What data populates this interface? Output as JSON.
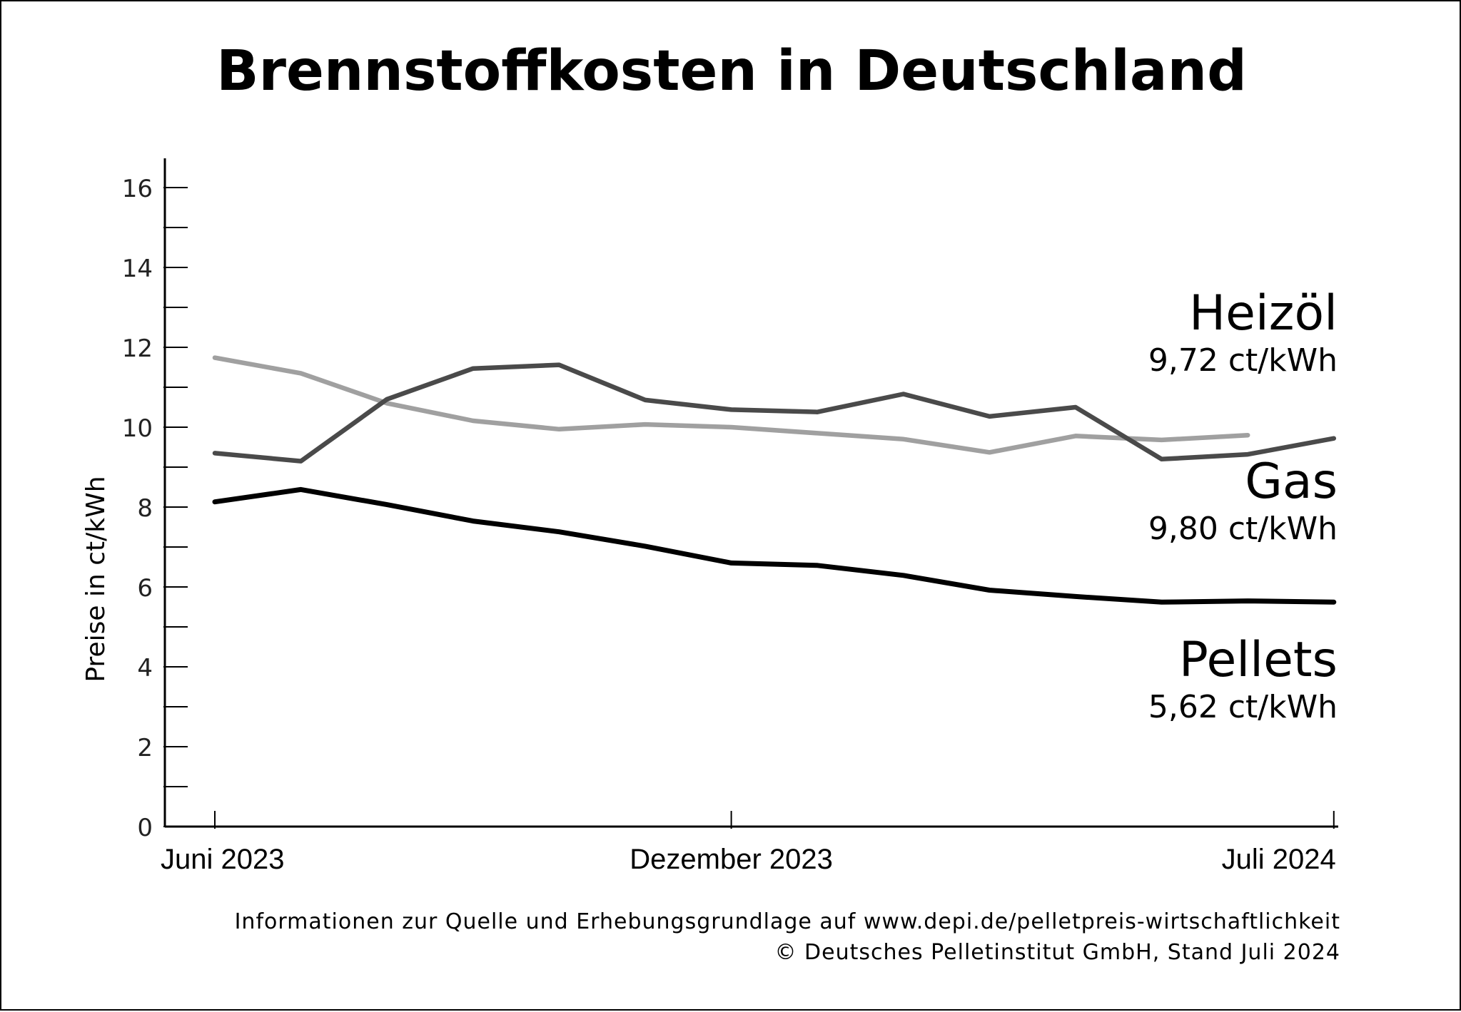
{
  "chart_data": {
    "type": "line",
    "title": "Brennstoffkosten in Deutschland",
    "ylabel": "Preise in ct/kWh",
    "xlabel": "",
    "ylim": [
      0,
      16.8
    ],
    "y_ticks": [
      "0",
      "2",
      "4",
      "6",
      "8",
      "10",
      "12",
      "14",
      "16"
    ],
    "x_tick_labels": [
      "Juni 2023",
      "Dezember 2023",
      "Juli 2024"
    ],
    "x": [
      "06/2023",
      "07/2023",
      "08/2023",
      "09/2023",
      "10/2023",
      "11/2023",
      "12/2023",
      "01/2024",
      "02/2024",
      "03/2024",
      "04/2024",
      "05/2024",
      "06/2024",
      "07/2024"
    ],
    "series": [
      {
        "name": "Heizöl",
        "value_label": "9,72 ct/kWh",
        "color": "#4a4a4a",
        "values": [
          9.35,
          9.15,
          10.7,
          11.47,
          11.56,
          10.68,
          10.44,
          10.38,
          10.83,
          10.27,
          10.5,
          9.2,
          9.32,
          9.72
        ]
      },
      {
        "name": "Gas",
        "value_label": "9,80 ct/kWh",
        "color": "#a0a0a0",
        "values": [
          11.74,
          11.35,
          10.6,
          10.16,
          9.95,
          10.07,
          10.0,
          9.85,
          9.7,
          9.37,
          9.78,
          9.68,
          9.8,
          null
        ]
      },
      {
        "name": "Pellets",
        "value_label": "5,62 ct/kWh",
        "color": "#000000",
        "values": [
          8.13,
          8.44,
          8.06,
          7.65,
          7.38,
          7.02,
          6.6,
          6.54,
          6.29,
          5.92,
          5.76,
          5.62,
          5.65,
          5.62
        ]
      }
    ]
  },
  "footer": {
    "source": "Informationen zur Quelle und Erhebungsgrundlage auf www.depi.de/pelletpreis-wirtschaftlichkeit",
    "copyright": "© Deutsches Pelletinstitut GmbH, Stand Juli 2024"
  }
}
